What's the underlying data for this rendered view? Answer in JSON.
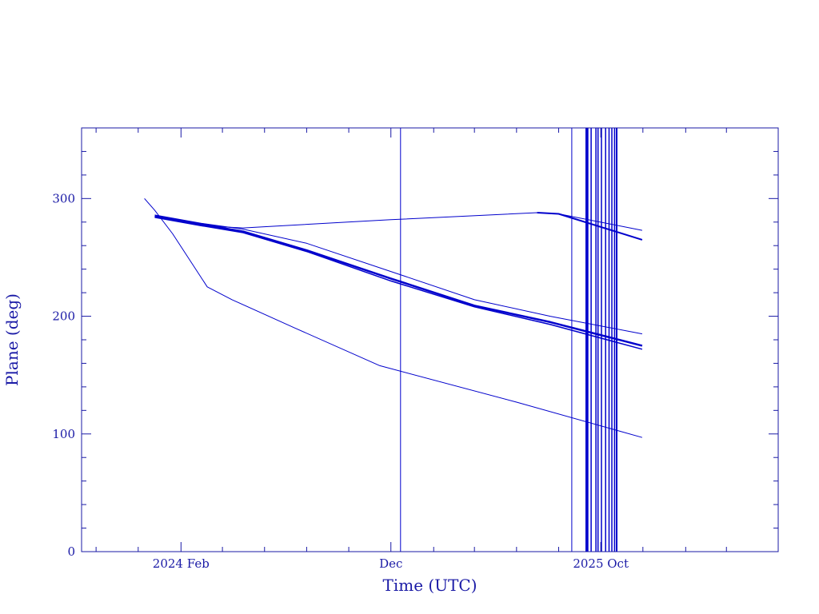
{
  "chart_data": {
    "type": "line",
    "title": "",
    "xlabel": "Time (UTC)",
    "ylabel": "Plane (deg)",
    "x_type": "date",
    "xlim": [
      "2023-09-10",
      "2026-06-15"
    ],
    "ylim": [
      0,
      360
    ],
    "y_ticks": [
      0,
      100,
      200,
      300
    ],
    "y_tick_labels": [
      "0",
      "100",
      "200",
      "300"
    ],
    "x_tick_labels": [
      {
        "date": "2024-02-01",
        "label": "2024 Feb"
      },
      {
        "date": "2024-12-01",
        "label": "Dec"
      },
      {
        "date": "2025-10-01",
        "label": "2025 Oct"
      }
    ],
    "grid": false,
    "color": "#0000cc",
    "series": [
      {
        "x": [
          "2023-12-10",
          "2023-12-25",
          "2024-01-20",
          "2024-03-10",
          "2024-04-15",
          "2024-07-15",
          "2024-11-15",
          "2025-06-01",
          "2025-11-30"
        ],
        "y": [
          300,
          290,
          270,
          225,
          214,
          190,
          158,
          127,
          97
        ],
        "width": 1
      },
      {
        "x": [
          "2023-12-25",
          "2024-03-01",
          "2024-05-01",
          "2024-08-01",
          "2024-12-01",
          "2025-04-01",
          "2025-07-20",
          "2025-11-30"
        ],
        "y": [
          286,
          279,
          274,
          262,
          238,
          214,
          200,
          185
        ],
        "width": 1
      },
      {
        "x": [
          "2023-12-25",
          "2024-03-01",
          "2024-05-01",
          "2024-08-01",
          "2024-12-01",
          "2025-04-01",
          "2025-07-20",
          "2025-11-30"
        ],
        "y": [
          285,
          278,
          272,
          256,
          232,
          209,
          195,
          175
        ],
        "width": 2.5
      },
      {
        "x": [
          "2023-12-25",
          "2024-03-01",
          "2024-05-01",
          "2024-08-01",
          "2024-12-01",
          "2025-04-01",
          "2025-07-20",
          "2025-11-30"
        ],
        "y": [
          284,
          277,
          271,
          255,
          230,
          208,
          193,
          172
        ],
        "width": 1.5
      },
      {
        "x": [
          "2023-12-25",
          "2024-04-01",
          "2024-05-01",
          "2024-12-01",
          "2025-07-01",
          "2025-08-01",
          "2025-11-30"
        ],
        "y": [
          285,
          276,
          275,
          282,
          288,
          287,
          273
        ],
        "width": 1
      },
      {
        "x": [
          "2025-07-01",
          "2025-08-01",
          "2025-11-30"
        ],
        "y": [
          288,
          287,
          265
        ],
        "width": 2
      }
    ],
    "vertical_lines": [
      {
        "date": "2024-12-15",
        "width": 1
      },
      {
        "date": "2025-08-20",
        "width": 1
      },
      {
        "date": "2025-09-10",
        "width": 2
      },
      {
        "date": "2025-09-12",
        "width": 2
      },
      {
        "date": "2025-09-17",
        "width": 1.5
      },
      {
        "date": "2025-09-24",
        "width": 1.5
      },
      {
        "date": "2025-09-27",
        "width": 1.5
      },
      {
        "date": "2025-10-02",
        "width": 1.5
      },
      {
        "date": "2025-10-08",
        "width": 1.5
      },
      {
        "date": "2025-10-13",
        "width": 1.5
      },
      {
        "date": "2025-10-17",
        "width": 1.5
      },
      {
        "date": "2025-10-21",
        "width": 1.5
      },
      {
        "date": "2025-10-24",
        "width": 2
      }
    ]
  }
}
